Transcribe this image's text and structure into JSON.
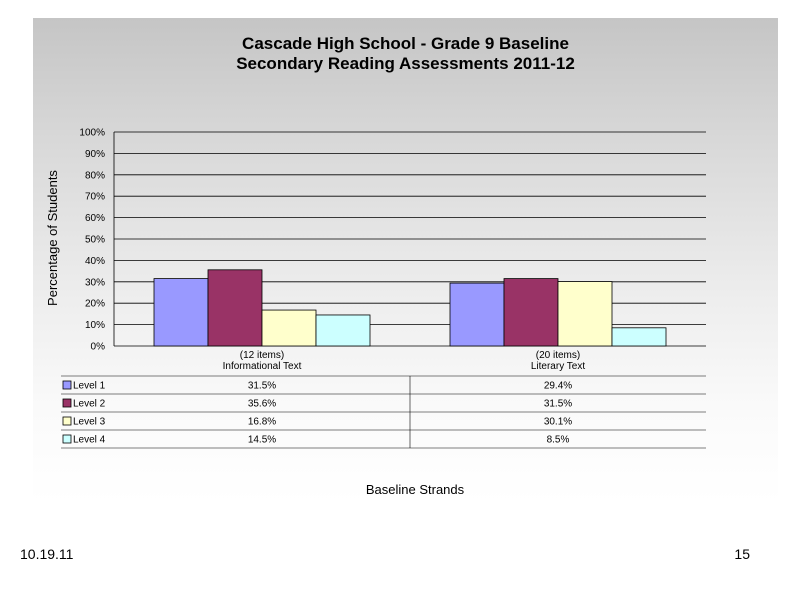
{
  "footer": {
    "date": "10.19.11",
    "page": "15"
  },
  "chart_data": {
    "type": "bar",
    "title": "Cascade High School - Grade 9 Baseline",
    "subtitle": "Secondary Reading Assessments 2011-12",
    "xlabel": "Baseline Strands",
    "ylabel": "Percentage of Students",
    "ylim": [
      0,
      100
    ],
    "yticks": [
      "0%",
      "10%",
      "20%",
      "30%",
      "40%",
      "50%",
      "60%",
      "70%",
      "80%",
      "90%",
      "100%"
    ],
    "grid": true,
    "categories": [
      {
        "line1": "(12 items)",
        "line2": "Informational Text"
      },
      {
        "line1": "(20 items)",
        "line2": "Literary Text"
      }
    ],
    "series": [
      {
        "name": "Level 1",
        "color": "#9999ff",
        "values": [
          31.5,
          29.4
        ],
        "labels": [
          "31.5%",
          "29.4%"
        ]
      },
      {
        "name": "Level 2",
        "color": "#993366",
        "values": [
          35.6,
          31.5
        ],
        "labels": [
          "35.6%",
          "31.5%"
        ]
      },
      {
        "name": "Level 3",
        "color": "#ffffcc",
        "values": [
          16.8,
          30.1
        ],
        "labels": [
          "16.8%",
          "30.1%"
        ]
      },
      {
        "name": "Level 4",
        "color": "#ccffff",
        "values": [
          14.5,
          8.5
        ],
        "labels": [
          "14.5%",
          "8.5%"
        ]
      }
    ]
  }
}
